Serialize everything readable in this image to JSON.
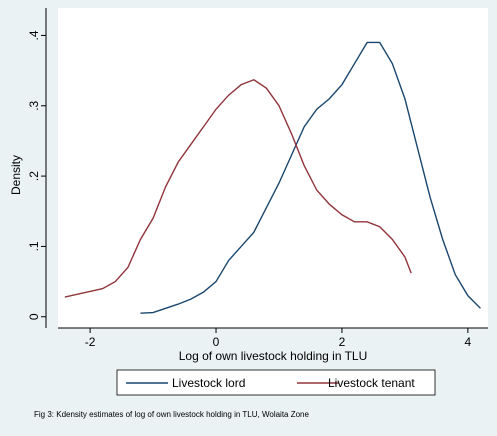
{
  "chart_data": {
    "type": "line",
    "y_label": "Density",
    "x_label": "Log of own livestock holding in TLU",
    "caption": "Fig 3: Kdensity estimates of log of own livestock holding in TLU, Wolaita Zone",
    "xlim": [
      -2.51,
      4.32
    ],
    "ylim": [
      -0.016,
      0.439
    ],
    "xticks": [
      -2,
      0,
      2,
      4
    ],
    "yticks": [
      0,
      {
        "value": 0.1,
        "label": ".1"
      },
      {
        "value": 0.2,
        "label": ".2"
      },
      {
        "value": 0.3,
        "label": ".3"
      },
      {
        "value": 0.4,
        "label": ".4"
      }
    ],
    "grid": false,
    "legend_position": "bottom",
    "series": [
      {
        "name": "Livestock lord",
        "color": "#1a476f",
        "x": [
          -1.2,
          -1.0,
          -0.8,
          -0.6,
          -0.4,
          -0.2,
          0,
          0.2,
          0.4,
          0.6,
          0.8,
          1.0,
          1.2,
          1.4,
          1.6,
          1.8,
          2.0,
          2.2,
          2.4,
          2.6,
          2.8,
          3.0,
          3.2,
          3.4,
          3.6,
          3.8,
          4.0,
          4.2
        ],
        "values": [
          0.005,
          0.006,
          0.012,
          0.018,
          0.025,
          0.035,
          0.05,
          0.08,
          0.1,
          0.12,
          0.155,
          0.19,
          0.23,
          0.27,
          0.295,
          0.31,
          0.33,
          0.36,
          0.39,
          0.39,
          0.36,
          0.31,
          0.24,
          0.17,
          0.11,
          0.06,
          0.03,
          0.012
        ]
      },
      {
        "name": "Livestock tenant",
        "color": "#90353b",
        "x": [
          -2.4,
          -2.2,
          -2.0,
          -1.8,
          -1.6,
          -1.4,
          -1.2,
          -1.0,
          -0.8,
          -0.6,
          -0.4,
          -0.2,
          0,
          0.2,
          0.4,
          0.6,
          0.8,
          1.0,
          1.2,
          1.4,
          1.6,
          1.8,
          2.0,
          2.2,
          2.4,
          2.6,
          2.8,
          3.0,
          3.1
        ],
        "values": [
          0.028,
          0.032,
          0.036,
          0.04,
          0.05,
          0.07,
          0.11,
          0.14,
          0.185,
          0.22,
          0.245,
          0.27,
          0.295,
          0.315,
          0.33,
          0.337,
          0.325,
          0.3,
          0.26,
          0.215,
          0.18,
          0.16,
          0.145,
          0.135,
          0.135,
          0.128,
          0.11,
          0.085,
          0.062
        ]
      }
    ]
  }
}
